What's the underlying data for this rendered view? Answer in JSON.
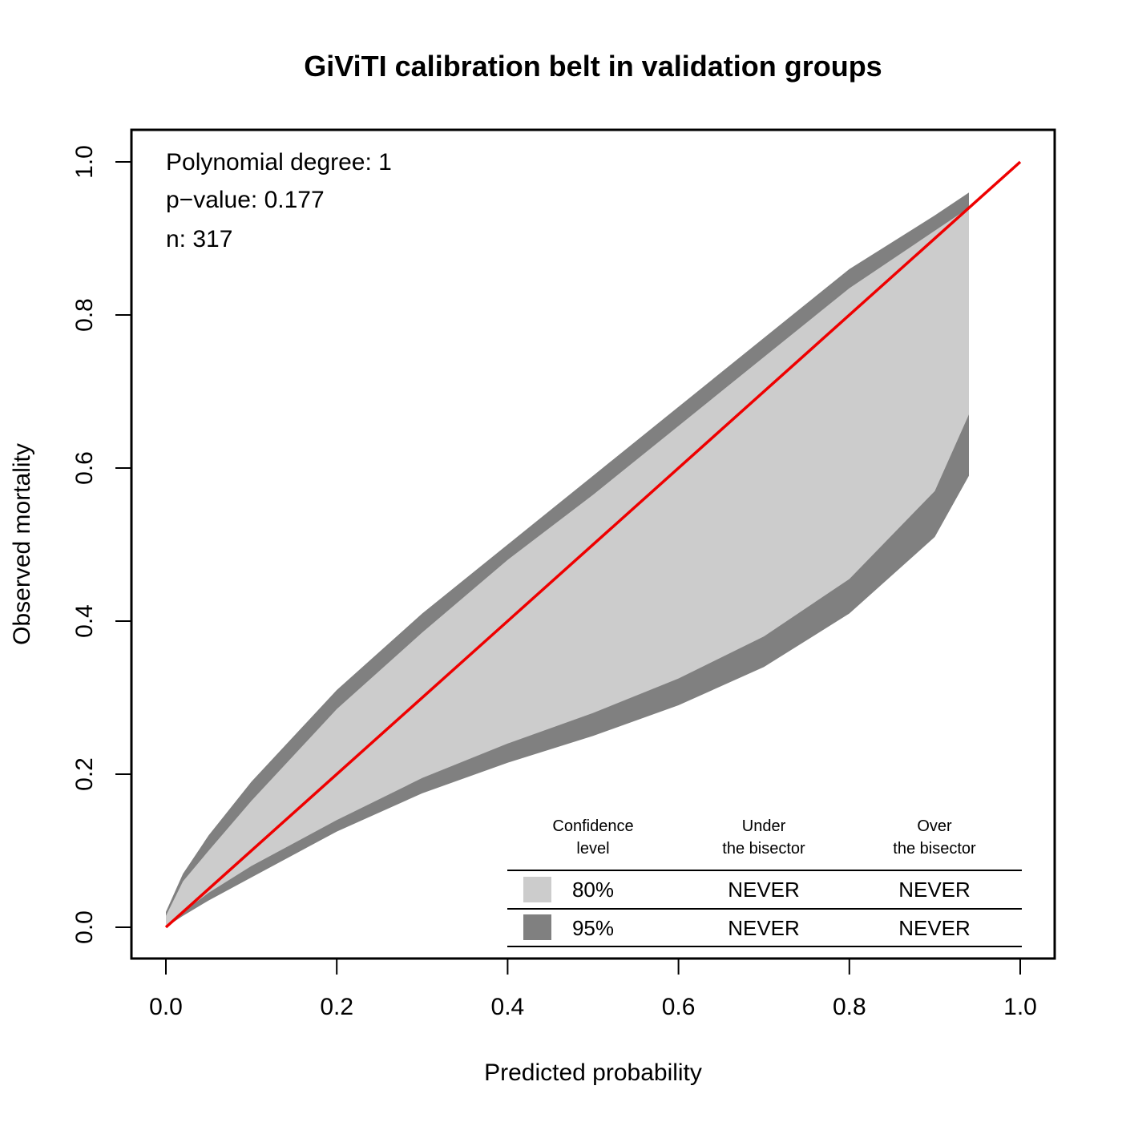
{
  "chart_data": {
    "type": "area",
    "title": "GiViTI calibration belt in validation groups",
    "xlabel": "Predicted probability",
    "ylabel": "Observed mortality",
    "xlim": [
      0.0,
      1.0
    ],
    "ylim": [
      0.0,
      1.0
    ],
    "x_ticks": [
      "0.0",
      "0.2",
      "0.4",
      "0.6",
      "0.8",
      "1.0"
    ],
    "y_ticks": [
      "0.0",
      "0.2",
      "0.4",
      "0.6",
      "0.8",
      "1.0"
    ],
    "grid": false,
    "annotations": [
      "Polynomial degree: 1",
      "p−value: 0.177",
      "n: 317"
    ],
    "belt_x": [
      0.0,
      0.02,
      0.05,
      0.1,
      0.2,
      0.3,
      0.4,
      0.5,
      0.6,
      0.7,
      0.8,
      0.9,
      0.94
    ],
    "series": [
      {
        "level": "95%",
        "color": "#808080",
        "upper": [
          0.02,
          0.07,
          0.12,
          0.19,
          0.31,
          0.41,
          0.5,
          0.59,
          0.68,
          0.77,
          0.86,
          0.93,
          0.96
        ],
        "lower": [
          0.0,
          0.015,
          0.035,
          0.065,
          0.125,
          0.175,
          0.215,
          0.25,
          0.29,
          0.34,
          0.41,
          0.51,
          0.59
        ]
      },
      {
        "level": "80%",
        "color": "#cccccc",
        "upper": [
          0.015,
          0.06,
          0.1,
          0.165,
          0.285,
          0.385,
          0.48,
          0.565,
          0.655,
          0.745,
          0.835,
          0.91,
          0.94
        ],
        "lower": [
          0.0,
          0.02,
          0.045,
          0.08,
          0.14,
          0.195,
          0.24,
          0.28,
          0.325,
          0.38,
          0.455,
          0.57,
          0.67
        ]
      }
    ],
    "bisector": {
      "color": "#ee0000",
      "x": [
        0.0,
        1.0
      ],
      "y": [
        0.0,
        1.0
      ]
    },
    "legend": {
      "placement": "bottom-right",
      "headers": [
        [
          "Confidence",
          "level"
        ],
        [
          "Under",
          "the bisector"
        ],
        [
          "Over",
          "the bisector"
        ]
      ],
      "rows": [
        {
          "level": "80%",
          "under": "NEVER",
          "over": "NEVER",
          "color": "#cccccc"
        },
        {
          "level": "95%",
          "under": "NEVER",
          "over": "NEVER",
          "color": "#808080"
        }
      ]
    }
  }
}
